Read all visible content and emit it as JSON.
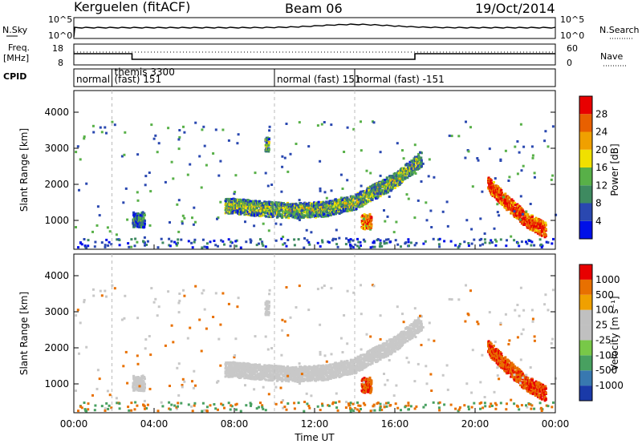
{
  "header": {
    "station": "Kerguelen (fitACF)",
    "beam": "Beam 06",
    "date": "19/Oct/2014"
  },
  "panels": {
    "nsky": {
      "left_label": "N.Sky",
      "right_label": "N.Search",
      "left_ticks": [
        "10^5",
        "10^0"
      ],
      "right_ticks": [
        "10^5",
        "10^0"
      ]
    },
    "freq": {
      "left_label_1": "Freq.",
      "left_label_2": "[MHz]",
      "right_label": "Nave",
      "left_ticks": [
        "18",
        "8"
      ],
      "right_ticks": [
        "60",
        "0"
      ]
    },
    "cpid": {
      "label": "CPID",
      "segments": [
        {
          "text": "normal",
          "start_hour": 0.0
        },
        {
          "text": "themis 3300",
          "start_hour": 1.9
        },
        {
          "text": "(fast) 151",
          "start_hour": 1.9
        },
        {
          "text": "normal (fast) 151",
          "start_hour": 10.0
        },
        {
          "text": "normal (fast) -151",
          "start_hour": 14.0
        }
      ]
    }
  },
  "chart_data": [
    {
      "type": "heatmap",
      "name": "power",
      "ylabel": "Slant Range [km]",
      "yticks": [
        1000,
        2000,
        3000,
        4000
      ],
      "ylim": [
        200,
        4600
      ],
      "colorbar_label": "Power [dB]",
      "colorbar_ticks": [
        "4",
        "8",
        "12",
        "16",
        "20",
        "24",
        "28"
      ],
      "colorbar_colors": [
        "#0010e8",
        "#2a48b0",
        "#3e8a60",
        "#58b048",
        "#f0e000",
        "#f0a000",
        "#e86000",
        "#e80000"
      ],
      "ridges": [
        {
          "hours": [
            7.5,
            9.5,
            11.0,
            12.5,
            14.0,
            16.0,
            17.3
          ],
          "ranges": [
            1400,
            1300,
            1250,
            1300,
            1500,
            2100,
            2700
          ],
          "level": 3
        },
        {
          "hours": [
            20.6,
            21.5,
            22.5,
            23.5
          ],
          "ranges": [
            2000,
            1500,
            1000,
            700
          ],
          "level": 7
        },
        {
          "hours": [
            14.3,
            14.8
          ],
          "ranges": [
            950,
            950
          ],
          "level": 6
        },
        {
          "hours": [
            2.9,
            3.5
          ],
          "ranges": [
            1000,
            1000
          ],
          "level": 2
        },
        {
          "hours": [
            9.5,
            9.7
          ],
          "ranges": [
            3100,
            3100
          ],
          "level": 3
        }
      ]
    },
    {
      "type": "heatmap",
      "name": "velocity",
      "ylabel": "Slant Range [km]",
      "yticks": [
        1000,
        2000,
        3000,
        4000
      ],
      "ylim": [
        200,
        4600
      ],
      "xlabel": "Time UT",
      "xticks": [
        "00:00",
        "04:00",
        "08:00",
        "12:00",
        "16:00",
        "20:00",
        "00:00"
      ],
      "xlim": [
        0,
        24
      ],
      "colorbar_label": "Velocity [m s⁻¹]",
      "colorbar_ticks": [
        "1000",
        "500",
        "100",
        "25",
        "-25",
        "-100",
        "-500",
        "-1000"
      ],
      "colorbar_colors": [
        "#1a3aa8",
        "#3878b0",
        "#48a060",
        "#78c848",
        "#c0c0c0",
        "#c0c0c0",
        "#f0a000",
        "#e87000",
        "#e80000"
      ]
    }
  ]
}
